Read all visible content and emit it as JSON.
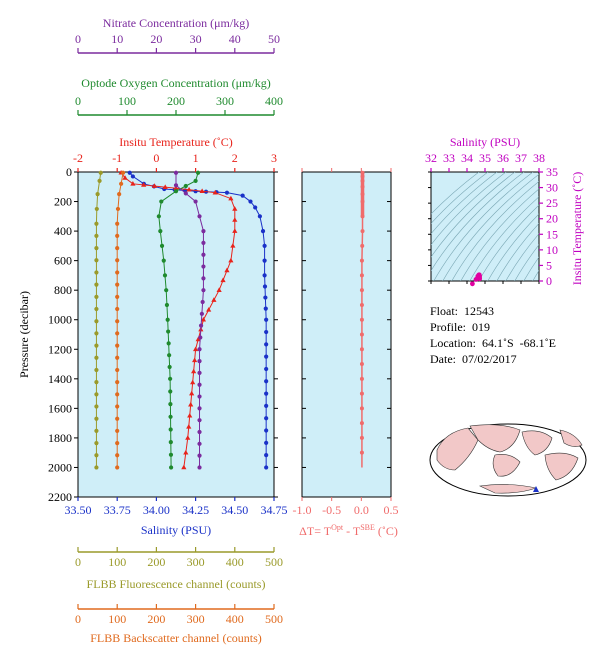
{
  "colors": {
    "temperature": "#e8231b",
    "salinity": "#1a31c8",
    "oxygen": "#1f8a2e",
    "nitrate": "#7b2b9e",
    "fluorescence": "#9a9a2a",
    "backscatter": "#e06a1e",
    "deltaT": "#f06b6b",
    "ts_axis": "#c000c0",
    "ts_point": "#e000a0",
    "panel_bg": "#cfeef8"
  },
  "info": {
    "float": "Float:  12543",
    "profile": "Profile:  019",
    "location": "Location:  64.1˚S  -68.1˚E",
    "date": "Date:  07/02/2017"
  },
  "chart_data": [
    {
      "type": "line",
      "name": "main-profile-panel",
      "ylabel": "Pressure (decibar)",
      "ylim": [
        2200,
        0
      ],
      "y_ticks": [
        "0",
        "200",
        "400",
        "600",
        "800",
        "1000",
        "1200",
        "1400",
        "1600",
        "1800",
        "2000",
        "2200"
      ],
      "axes": [
        {
          "key": "salinity",
          "label": "Salinity (PSU)",
          "range": [
            33.5,
            34.75
          ],
          "ticks": [
            "33.50",
            "33.75",
            "34.00",
            "34.25",
            "34.50",
            "34.75"
          ]
        },
        {
          "key": "temperature",
          "label": "Insitu Temperature (˚C)",
          "range": [
            -2,
            3
          ],
          "ticks": [
            "-2",
            "-1",
            "0",
            "1",
            "2",
            "3"
          ]
        },
        {
          "key": "oxygen",
          "label": "Optode Oxygen Concentration (μm/kg)",
          "range": [
            0,
            400
          ],
          "ticks": [
            "0",
            "100",
            "200",
            "300",
            "400"
          ]
        },
        {
          "key": "nitrate",
          "label": "Nitrate Concentration (μm/kg)",
          "range": [
            0,
            50
          ],
          "ticks": [
            "0",
            "10",
            "20",
            "30",
            "40",
            "50"
          ]
        },
        {
          "key": "fluorescence",
          "label": "FLBB Fluorescence channel (counts)",
          "range": [
            0,
            500
          ],
          "ticks": [
            "0",
            "100",
            "200",
            "300",
            "400",
            "500"
          ]
        },
        {
          "key": "backscatter",
          "label": "FLBB Backscatter channel (counts)",
          "range": [
            0,
            500
          ],
          "ticks": [
            "0",
            "100",
            "200",
            "300",
            "400",
            "500"
          ]
        }
      ],
      "series": [
        {
          "key": "salinity",
          "marker": "circle",
          "points": [
            [
              33.83,
              5
            ],
            [
              33.85,
              30
            ],
            [
              33.92,
              80
            ],
            [
              34.05,
              115
            ],
            [
              34.25,
              130
            ],
            [
              34.45,
              140
            ],
            [
              34.55,
              160
            ],
            [
              34.6,
              200
            ],
            [
              34.63,
              240
            ],
            [
              34.66,
              300
            ],
            [
              34.68,
              400
            ],
            [
              34.69,
              500
            ],
            [
              34.69,
              700
            ],
            [
              34.7,
              1000
            ],
            [
              34.7,
              1500
            ],
            [
              34.7,
              2000
            ]
          ]
        },
        {
          "key": "temperature",
          "marker": "triangle",
          "points": [
            [
              -0.9,
              5
            ],
            [
              -0.8,
              40
            ],
            [
              -0.6,
              80
            ],
            [
              0.5,
              110
            ],
            [
              1.5,
              140
            ],
            [
              1.9,
              180
            ],
            [
              2.0,
              250
            ],
            [
              2.0,
              400
            ],
            [
              1.9,
              600
            ],
            [
              1.6,
              800
            ],
            [
              1.2,
              1000
            ],
            [
              1.0,
              1200
            ],
            [
              0.9,
              1500
            ],
            [
              0.8,
              1800
            ],
            [
              0.7,
              2000
            ]
          ]
        },
        {
          "key": "oxygen",
          "marker": "circle",
          "points": [
            [
              245,
              5
            ],
            [
              240,
              60
            ],
            [
              200,
              130
            ],
            [
              170,
              200
            ],
            [
              165,
              300
            ],
            [
              168,
              400
            ],
            [
              175,
              600
            ],
            [
              180,
              800
            ],
            [
              183,
              1000
            ],
            [
              188,
              1400
            ],
            [
              190,
              2000
            ]
          ]
        },
        {
          "key": "nitrate",
          "marker": "circle",
          "points": [
            [
              25,
              5
            ],
            [
              25,
              90
            ],
            [
              30,
              200
            ],
            [
              31,
              300
            ],
            [
              32,
              400
            ],
            [
              32,
              800
            ],
            [
              31,
              1200
            ],
            [
              31,
              1600
            ],
            [
              31,
              2000
            ]
          ]
        },
        {
          "key": "fluorescence",
          "marker": "circle",
          "points": [
            [
              58,
              5
            ],
            [
              55,
              60
            ],
            [
              50,
              150
            ],
            [
              48,
              250
            ],
            [
              47,
              350
            ],
            [
              47,
              2000
            ]
          ]
        },
        {
          "key": "backscatter",
          "marker": "circle",
          "points": [
            [
              115,
              5
            ],
            [
              110,
              80
            ],
            [
              105,
              150
            ],
            [
              102,
              250
            ],
            [
              100,
              350
            ],
            [
              100,
              2000
            ]
          ]
        }
      ]
    },
    {
      "type": "scatter",
      "name": "delta-t-panel",
      "xlabel": "ΔT= T",
      "xlabel_sup1": "Opt",
      "xlabel_mid": " - T",
      "xlabel_sup2": "SBE",
      "xlabel_tail": " (˚C)",
      "xlim": [
        -1.0,
        0.5
      ],
      "x_ticks": [
        "-1.0",
        "-0.5",
        "0.0",
        "0.5"
      ],
      "ylim": [
        2200,
        0
      ],
      "points": [
        [
          0.02,
          5
        ],
        [
          0.02,
          30
        ],
        [
          0.02,
          60
        ],
        [
          0.02,
          100
        ],
        [
          0.02,
          150
        ],
        [
          0.02,
          200
        ],
        [
          0.02,
          300
        ],
        [
          0.02,
          400
        ],
        [
          0.01,
          600
        ],
        [
          0.01,
          800
        ],
        [
          0.01,
          1000
        ],
        [
          0.01,
          1200
        ],
        [
          0.01,
          1400
        ],
        [
          0.01,
          1600
        ],
        [
          0.01,
          1800
        ],
        [
          0.01,
          2000
        ]
      ]
    },
    {
      "type": "scatter",
      "name": "ts-diagram",
      "xlabel": "Salinity (PSU)",
      "ylabel": "Insitu Temperature (˚C)",
      "xlim": [
        32,
        38
      ],
      "ylim": [
        0,
        35
      ],
      "x_ticks": [
        "32",
        "33",
        "34",
        "35",
        "36",
        "37",
        "38"
      ],
      "y_ticks": [
        "0",
        "5",
        "10",
        "15",
        "20",
        "25",
        "30",
        "35"
      ],
      "points": [
        [
          34.3,
          -0.9
        ],
        [
          34.5,
          0.5
        ],
        [
          34.6,
          1.5
        ],
        [
          34.65,
          1.9
        ],
        [
          34.68,
          2.0
        ],
        [
          34.7,
          1.6
        ],
        [
          34.7,
          1.0
        ],
        [
          34.7,
          0.7
        ]
      ]
    }
  ]
}
